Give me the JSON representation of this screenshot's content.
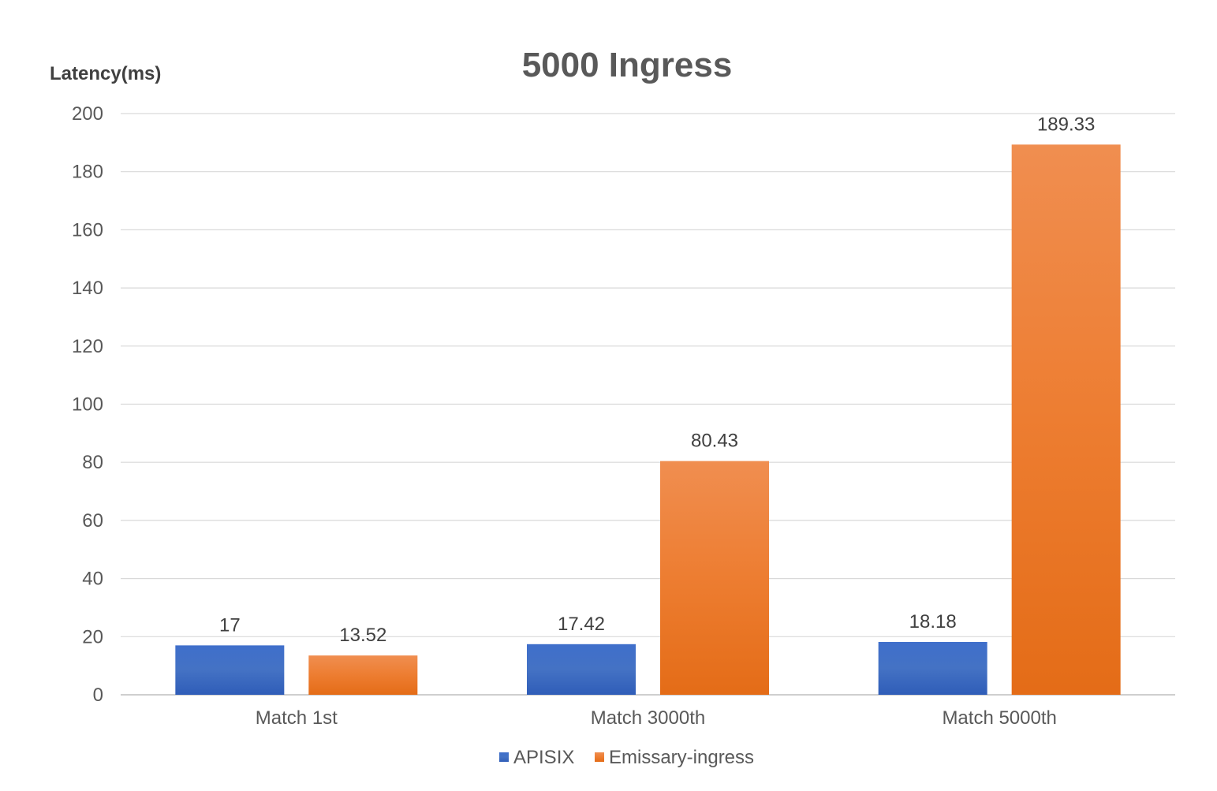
{
  "chart_data": {
    "type": "bar",
    "title": "5000 Ingress",
    "xlabel": "",
    "ylabel": "Latency(ms)",
    "ylim": [
      0,
      200
    ],
    "yticks": [
      0,
      20,
      40,
      60,
      80,
      100,
      120,
      140,
      160,
      180,
      200
    ],
    "grid": true,
    "legend_position": "bottom",
    "categories": [
      "Match 1st",
      "Match 3000th",
      "Match 5000th"
    ],
    "series": [
      {
        "name": "APISIX",
        "values": [
          17,
          17.42,
          18.18
        ],
        "labels": [
          "17",
          "17.42",
          "18.18"
        ],
        "color": "#4472C4",
        "color_light": "#3F6FCB",
        "color_dark": "#2F5DB8"
      },
      {
        "name": "Emissary-ingress",
        "values": [
          13.52,
          80.43,
          189.33
        ],
        "labels": [
          "13.52",
          "80.43",
          "189.33"
        ],
        "color": "#ED7D31",
        "color_light": "#F08E50",
        "color_dark": "#E46C17"
      }
    ]
  }
}
